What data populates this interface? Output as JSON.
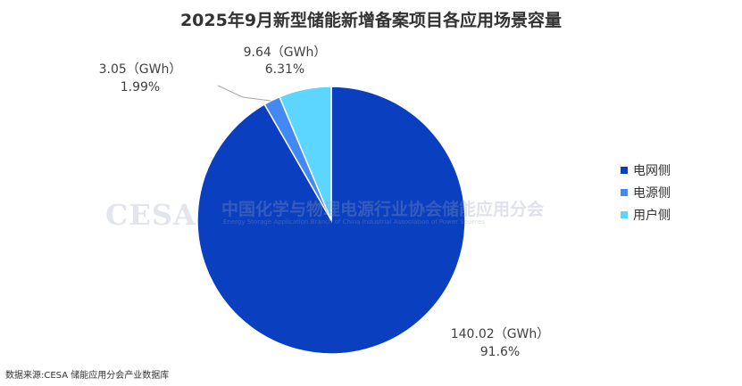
{
  "chart_data": {
    "type": "pie",
    "title": "2025年9月新型储能新增备案项目各应用场景容量",
    "unit": "GWh",
    "slices": [
      {
        "name": "电网侧",
        "value": 140.02,
        "percent": "91.6%",
        "label_value": "140.02（GWh）",
        "color": "#0a3fbf"
      },
      {
        "name": "电源侧",
        "value": 3.05,
        "percent": "1.99%",
        "label_value": "3.05（GWh）",
        "color": "#4488f2"
      },
      {
        "name": "用户侧",
        "value": 9.64,
        "percent": "6.31%",
        "label_value": "9.64（GWh）",
        "color": "#5cd5ff"
      }
    ],
    "legend": {
      "position": "right"
    }
  },
  "watermark": {
    "logo": "CESA",
    "cn": "中国化学与物理电源行业协会储能应用分会",
    "en": "Energy Storage Application Branch of China Industrial Association of Power Sources"
  },
  "source": "数据来源:CESA 储能应用分会产业数据库"
}
